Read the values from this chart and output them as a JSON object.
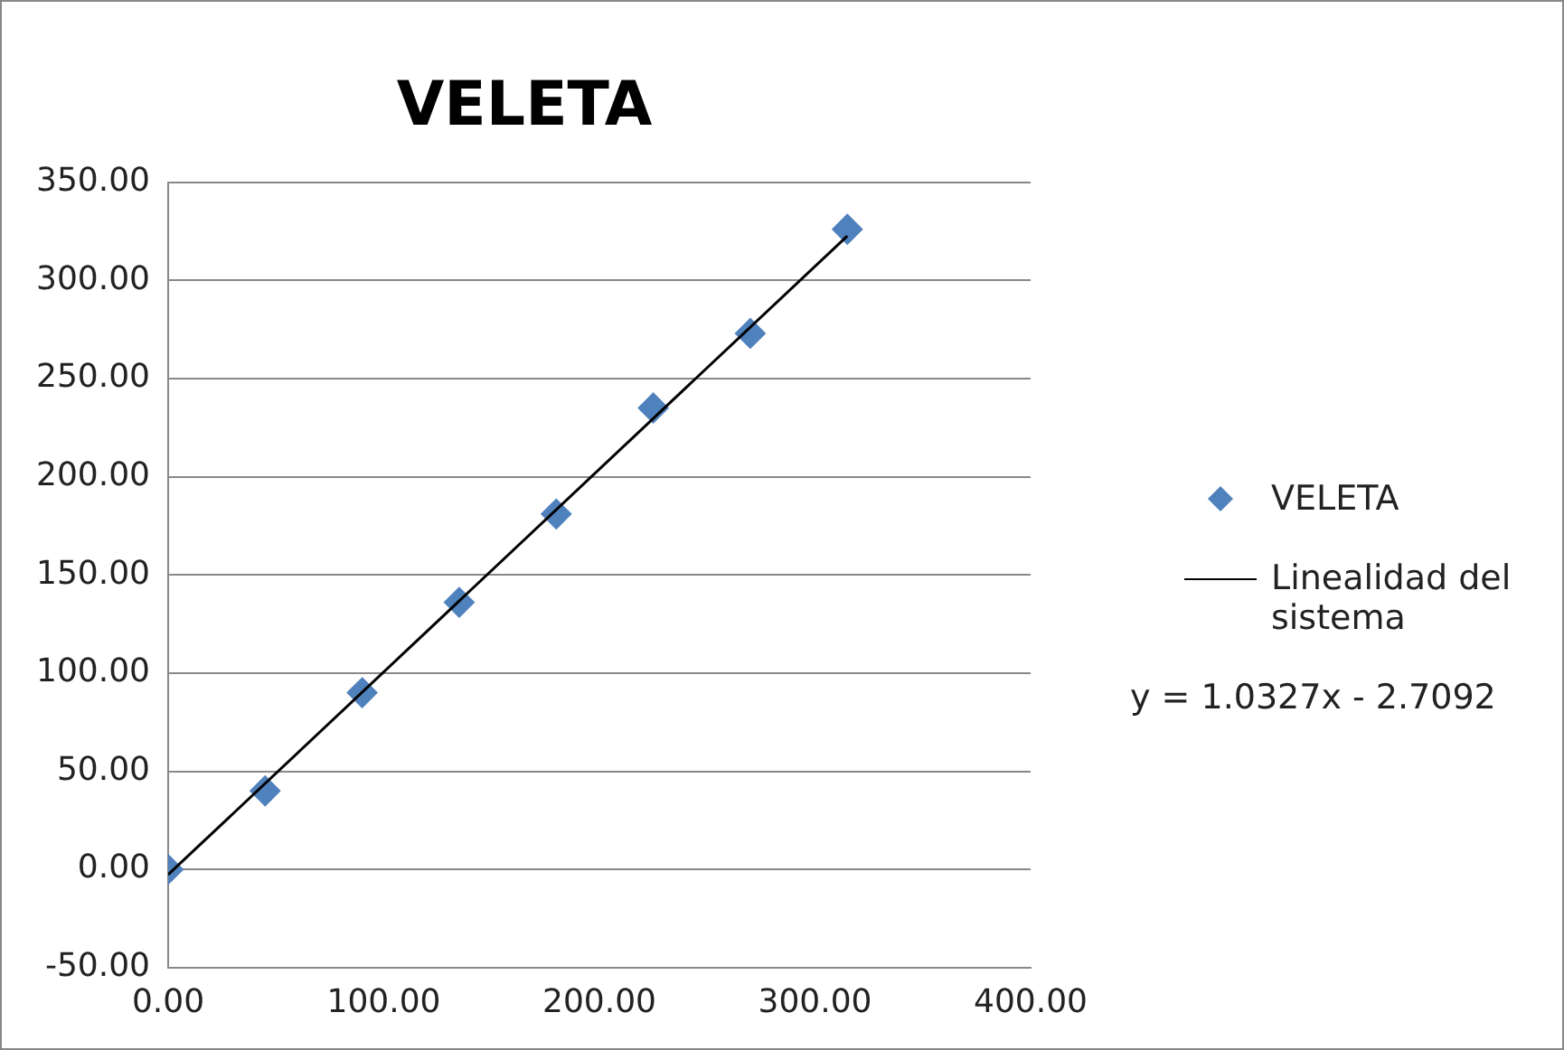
{
  "chart_data": {
    "type": "scatter",
    "title": "VELETA",
    "xlim": [
      0,
      400
    ],
    "xticks": [
      {
        "value": 0,
        "label": "0.00"
      },
      {
        "value": 100,
        "label": "100.00"
      },
      {
        "value": 200,
        "label": "200.00"
      },
      {
        "value": 300,
        "label": "300.00"
      },
      {
        "value": 400,
        "label": "400.00"
      }
    ],
    "ylim": [
      -50,
      350
    ],
    "yticks": [
      {
        "value": -50,
        "label": "-50.00"
      },
      {
        "value": 0,
        "label": "0.00"
      },
      {
        "value": 50,
        "label": "50.00"
      },
      {
        "value": 100,
        "label": "100.00"
      },
      {
        "value": 150,
        "label": "150.00"
      },
      {
        "value": 200,
        "label": "200.00"
      },
      {
        "value": 250,
        "label": "250.00"
      },
      {
        "value": 300,
        "label": "300.00"
      },
      {
        "value": 350,
        "label": "350.00"
      }
    ],
    "grid": "y",
    "legend": "right",
    "series": [
      {
        "name": "VELETA",
        "type": "scatter",
        "marker": "diamond",
        "color": "#4f81bd",
        "x": [
          0,
          45,
          90,
          135,
          180,
          225,
          270,
          315
        ],
        "values": [
          0,
          40,
          90,
          136,
          181,
          235,
          273,
          326
        ]
      },
      {
        "name": "Linealidad del sistema",
        "type": "line",
        "marker": "none",
        "color": "#000000",
        "x": [
          0,
          315
        ],
        "values": [
          -2.7,
          322.6
        ]
      }
    ],
    "annotations": [
      "y = 1.0327x - 2.7092"
    ]
  }
}
